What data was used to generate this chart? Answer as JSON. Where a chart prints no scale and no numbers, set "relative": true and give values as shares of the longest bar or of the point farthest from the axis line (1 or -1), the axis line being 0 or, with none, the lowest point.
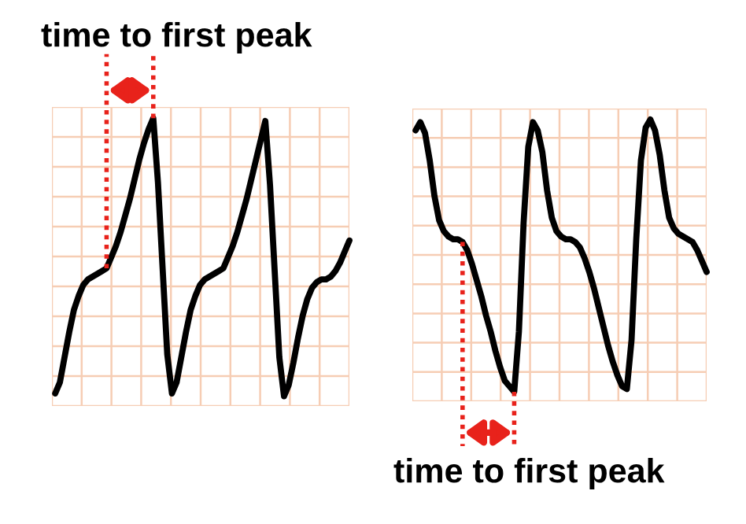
{
  "chart_data": [
    {
      "type": "line",
      "relative": true,
      "grid": true,
      "annotations": [
        "time to first peak"
      ],
      "categories": [
        null,
        null,
        null,
        null,
        null,
        null,
        null,
        null,
        null,
        null,
        null,
        null,
        null,
        null,
        null,
        null,
        null,
        null,
        null,
        null,
        null,
        null,
        null,
        null,
        null,
        null,
        null,
        null,
        null,
        null,
        null,
        null,
        null,
        null,
        null,
        null,
        null,
        null,
        null,
        null,
        null,
        null,
        null,
        null,
        null,
        null,
        null,
        null,
        null,
        null,
        null,
        null,
        null,
        null,
        null,
        null,
        null,
        null,
        null,
        null,
        null,
        null,
        null,
        null
      ],
      "series": [
        {
          "color": "#000000",
          "values": [
            0.01,
            0.05,
            0.14,
            0.23,
            0.31,
            0.36,
            0.4,
            0.42,
            0.43,
            0.44,
            0.45,
            0.46,
            0.5,
            0.54,
            0.59,
            0.65,
            0.71,
            0.78,
            0.85,
            0.91,
            0.96,
            1,
            0.77,
            0.46,
            0.15,
            0.01,
            0.05,
            0.14,
            0.23,
            0.31,
            0.36,
            0.4,
            0.42,
            0.43,
            0.44,
            0.45,
            0.46,
            0.5,
            0.54,
            0.59,
            0.65,
            0.71,
            0.78,
            0.85,
            0.92,
            0.99,
            0.76,
            0.45,
            0.14,
            0,
            0.04,
            0.12,
            0.21,
            0.29,
            0.35,
            0.39,
            0.41,
            0.42,
            0.42,
            0.43,
            0.45,
            0.48,
            0.52,
            0.56
          ]
        }
      ]
    },
    {
      "type": "line",
      "relative": true,
      "grid": true,
      "annotations": [
        "time to first peak"
      ],
      "categories": [
        null,
        null,
        null,
        null,
        null,
        null,
        null,
        null,
        null,
        null,
        null,
        null,
        null,
        null,
        null,
        null,
        null,
        null,
        null,
        null,
        null,
        null,
        null,
        null,
        null,
        null,
        null,
        null,
        null,
        null,
        null,
        null,
        null,
        null,
        null,
        null,
        null,
        null,
        null,
        null,
        null,
        null,
        null,
        null,
        null,
        null,
        null,
        null,
        null,
        null,
        null,
        null,
        null,
        null,
        null,
        null,
        null,
        null,
        null,
        null,
        null,
        null,
        null
      ],
      "series": [
        {
          "color": "#000000",
          "values": [
            0.96,
            0.99,
            0.95,
            0.85,
            0.72,
            0.63,
            0.59,
            0.57,
            0.56,
            0.56,
            0.55,
            0.52,
            0.47,
            0.41,
            0.35,
            0.28,
            0.22,
            0.15,
            0.09,
            0.04,
            0.02,
            0,
            0.22,
            0.62,
            0.9,
            0.99,
            0.96,
            0.88,
            0.74,
            0.64,
            0.59,
            0.57,
            0.56,
            0.56,
            0.55,
            0.53,
            0.49,
            0.44,
            0.38,
            0.31,
            0.24,
            0.17,
            0.11,
            0.06,
            0.02,
            0.01,
            0.19,
            0.56,
            0.85,
            0.97,
            1,
            0.96,
            0.87,
            0.74,
            0.64,
            0.6,
            0.58,
            0.57,
            0.56,
            0.55,
            0.52,
            0.48,
            0.44
          ]
        }
      ]
    }
  ]
}
